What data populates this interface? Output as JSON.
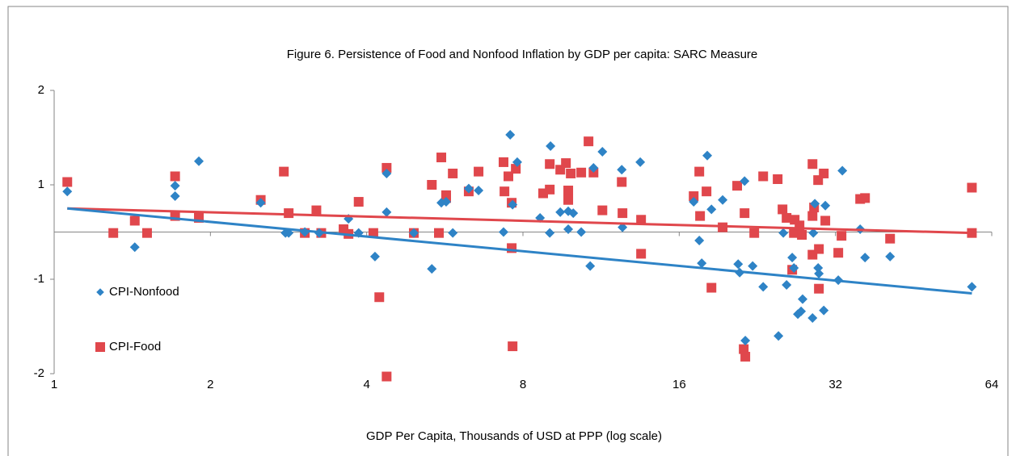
{
  "chart_data": {
    "type": "scatter",
    "title": "Figure 6. Persistence of Food and Nonfood Inflation by GDP per capita: SARC Measure",
    "xlabel": "GDP Per Capita, Thousands of USD at PPP (log scale)",
    "xscale": "log2",
    "xlim": [
      1,
      64
    ],
    "xticks": [
      1,
      2,
      4,
      8,
      16,
      32,
      64
    ],
    "ylim": [
      -1.5,
      1.5
    ],
    "yticks": [
      {
        "value": -1.5,
        "label": "-2"
      },
      {
        "value": -0.5,
        "label": "-1"
      },
      {
        "value": 0.5,
        "label": "1"
      },
      {
        "value": 1.5,
        "label": "2"
      }
    ],
    "grid": false,
    "legend": "left",
    "series": [
      {
        "name": "CPI-Food",
        "color": "#e0474c",
        "marker": "square",
        "x": [
          1.06,
          1.3,
          1.43,
          1.51,
          1.71,
          1.71,
          1.9,
          2.5,
          2.77,
          2.83,
          3.04,
          3.2,
          3.27,
          3.61,
          3.69,
          3.86,
          4.12,
          4.37,
          4.23,
          4.37,
          4.93,
          5.34,
          5.51,
          5.57,
          5.69,
          5.69,
          5.86,
          6.29,
          6.57,
          7.34,
          7.37,
          7.5,
          7.61,
          7.64,
          7.61,
          7.75,
          8.75,
          9.01,
          9.01,
          9.44,
          9.68,
          9.78,
          9.78,
          9.89,
          10.36,
          10.7,
          10.94,
          11.38,
          12.4,
          12.44,
          13.51,
          13.51,
          17.06,
          17.49,
          17.55,
          18.06,
          18.46,
          19.4,
          20.69,
          21.3,
          21.38,
          21.45,
          22.32,
          23.22,
          24.76,
          25.3,
          25.76,
          26.41,
          26.61,
          26.7,
          27.28,
          27.57,
          28.9,
          28.9,
          28.9,
          29.1,
          29.63,
          29.73,
          29.73,
          30.38,
          30.59,
          32.4,
          32.87,
          35.7,
          36.48,
          40.77,
          58.6,
          58.6
        ],
        "values": [
          0.53,
          -0.01,
          0.12,
          -0.01,
          0.59,
          0.17,
          0.15,
          0.34,
          0.64,
          0.2,
          -0.01,
          0.23,
          -0.01,
          0.03,
          -0.02,
          0.32,
          -0.01,
          0.68,
          -0.69,
          -1.53,
          -0.01,
          0.5,
          -0.01,
          0.79,
          0.39,
          0.36,
          0.62,
          0.43,
          0.64,
          0.74,
          0.43,
          0.59,
          -0.17,
          -1.21,
          0.31,
          0.67,
          0.41,
          0.72,
          0.45,
          0.66,
          0.73,
          0.44,
          0.34,
          0.62,
          0.63,
          0.96,
          0.63,
          0.23,
          0.53,
          0.2,
          0.13,
          -0.23,
          0.38,
          0.64,
          0.17,
          0.43,
          -0.59,
          0.05,
          0.49,
          -1.24,
          0.2,
          -1.32,
          -0.01,
          0.59,
          0.56,
          0.24,
          0.15,
          -0.4,
          -0.01,
          0.13,
          0.07,
          -0.03,
          0.72,
          0.17,
          -0.24,
          0.26,
          0.55,
          -0.18,
          -0.6,
          0.62,
          0.12,
          -0.22,
          -0.04,
          0.35,
          0.36,
          -0.07,
          0.47,
          -0.01
        ],
        "trend": {
          "x": [
            1.06,
            58.6
          ],
          "values": [
            0.25,
            -0.01
          ]
        }
      },
      {
        "name": "CPI-Nonfood",
        "color": "#2e83c6",
        "marker": "diamond",
        "x": [
          1.06,
          1.43,
          1.71,
          1.71,
          1.9,
          2.5,
          2.79,
          2.83,
          3.04,
          3.24,
          3.69,
          3.86,
          4.15,
          4.37,
          4.37,
          4.93,
          5.34,
          5.57,
          5.69,
          5.86,
          6.29,
          6.57,
          7.34,
          7.56,
          7.64,
          7.8,
          8.63,
          9.01,
          9.04,
          9.44,
          9.78,
          9.78,
          10.0,
          10.36,
          10.78,
          10.94,
          11.38,
          12.4,
          12.44,
          13.46,
          17.06,
          17.49,
          17.68,
          18.12,
          18.46,
          19.4,
          20.78,
          20.92,
          21.38,
          21.45,
          22.16,
          23.22,
          24.85,
          25.39,
          25.76,
          26.41,
          26.61,
          27.08,
          27.47,
          27.66,
          28.9,
          29.0,
          29.2,
          29.63,
          29.73,
          30.38,
          30.59,
          32.4,
          32.99,
          35.7,
          36.48,
          40.77,
          58.6
        ],
        "values": [
          0.43,
          -0.16,
          0.49,
          0.38,
          0.75,
          0.31,
          -0.01,
          -0.01,
          0,
          -0.01,
          0.14,
          -0.01,
          -0.26,
          0.21,
          0.62,
          -0.01,
          -0.39,
          0.31,
          0.32,
          -0.01,
          0.46,
          0.44,
          0,
          1.03,
          0.29,
          0.74,
          0.15,
          -0.01,
          0.91,
          0.21,
          0.22,
          0.03,
          0.2,
          0,
          -0.36,
          0.68,
          0.85,
          0.66,
          0.05,
          0.74,
          0.32,
          -0.09,
          -0.33,
          0.81,
          0.24,
          0.34,
          -0.34,
          -0.43,
          0.54,
          -1.15,
          -0.36,
          -0.58,
          -1.1,
          -0.01,
          -0.56,
          -0.27,
          -0.38,
          -0.87,
          -0.84,
          -0.71,
          -0.91,
          -0.01,
          0.3,
          -0.38,
          -0.44,
          -0.83,
          0.28,
          -0.51,
          0.65,
          0.03,
          -0.27,
          -0.26,
          -0.58
        ],
        "trend": {
          "x": [
            1.06,
            58.6
          ],
          "values": [
            0.25,
            -0.65
          ]
        }
      }
    ]
  }
}
